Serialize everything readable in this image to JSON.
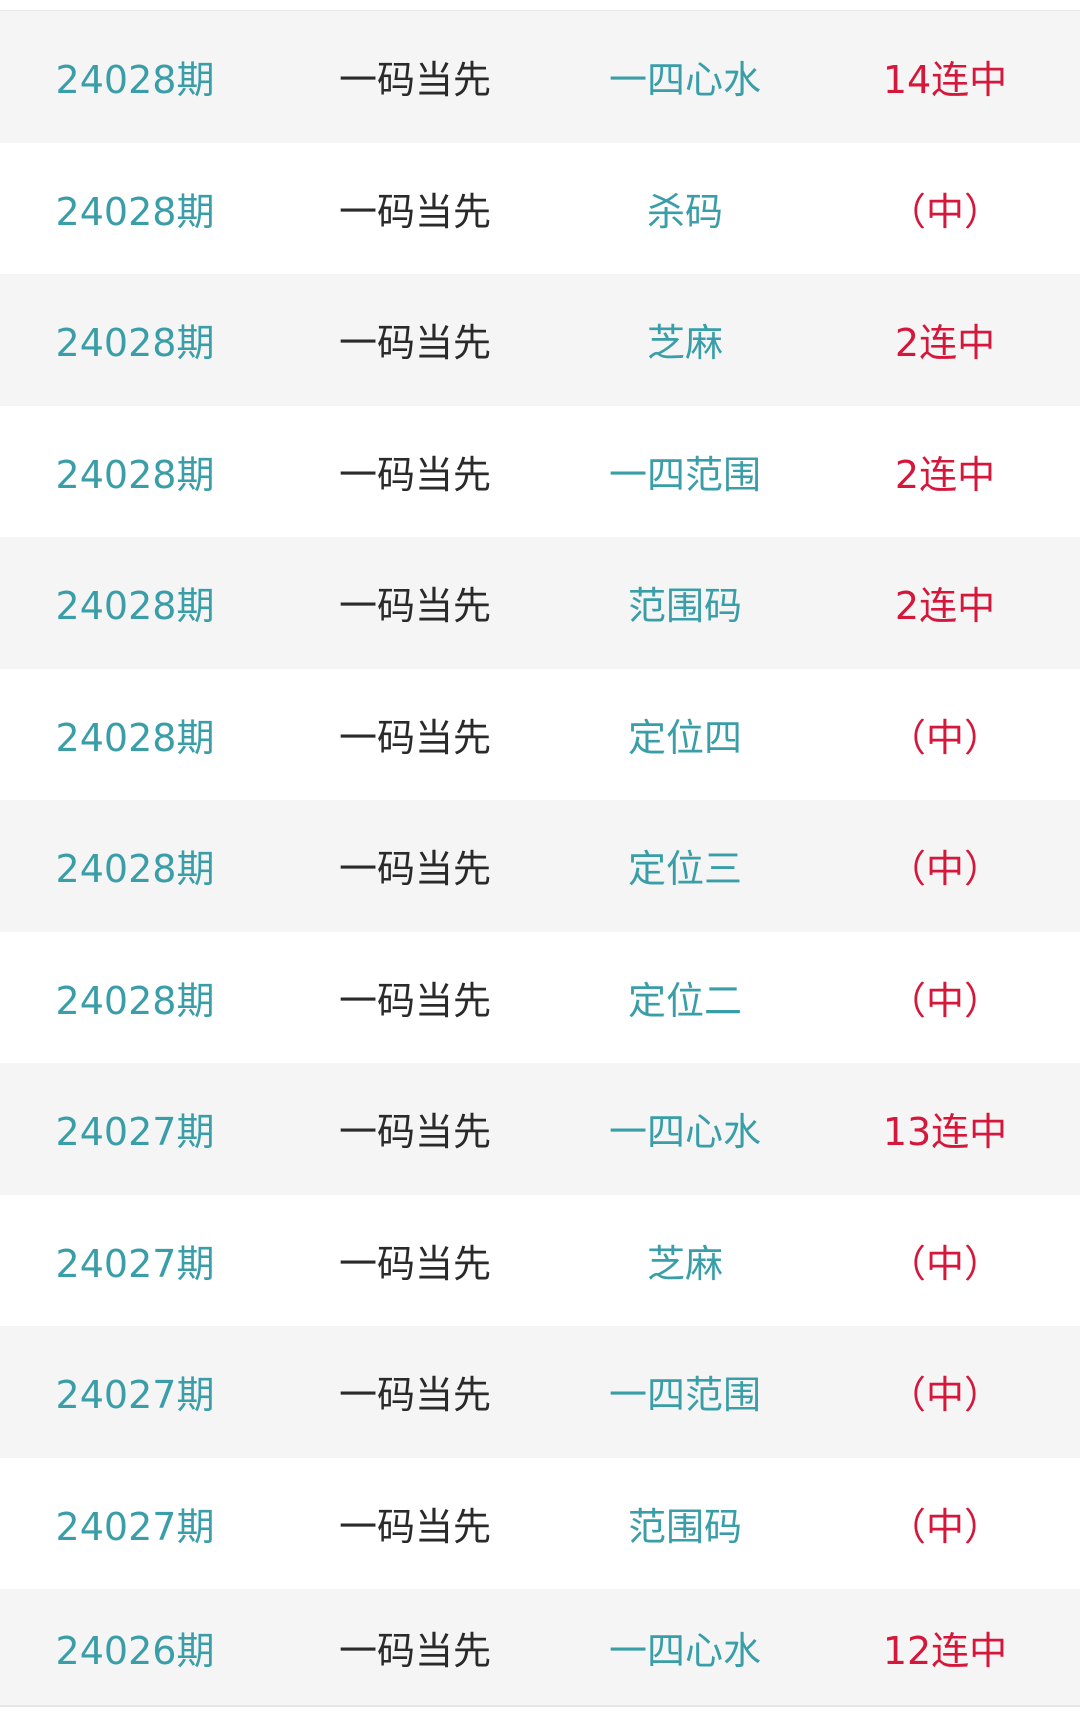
{
  "colors": {
    "issue": "#3a9ea8",
    "category": "#2a2a2a",
    "type": "#3a9ea8",
    "result": "#d4173b",
    "row_alt": "#f5f5f5"
  },
  "rows": [
    {
      "issue": "24028期",
      "category": "一码当先",
      "type": "一四心水",
      "result": "14连中"
    },
    {
      "issue": "24028期",
      "category": "一码当先",
      "type": "杀码",
      "result": "（中）"
    },
    {
      "issue": "24028期",
      "category": "一码当先",
      "type": "芝麻",
      "result": "2连中"
    },
    {
      "issue": "24028期",
      "category": "一码当先",
      "type": "一四范围",
      "result": "2连中"
    },
    {
      "issue": "24028期",
      "category": "一码当先",
      "type": "范围码",
      "result": "2连中"
    },
    {
      "issue": "24028期",
      "category": "一码当先",
      "type": "定位四",
      "result": "（中）"
    },
    {
      "issue": "24028期",
      "category": "一码当先",
      "type": "定位三",
      "result": "（中）"
    },
    {
      "issue": "24028期",
      "category": "一码当先",
      "type": "定位二",
      "result": "（中）"
    },
    {
      "issue": "24027期",
      "category": "一码当先",
      "type": "一四心水",
      "result": "13连中"
    },
    {
      "issue": "24027期",
      "category": "一码当先",
      "type": "芝麻",
      "result": "（中）"
    },
    {
      "issue": "24027期",
      "category": "一码当先",
      "type": "一四范围",
      "result": "（中）"
    },
    {
      "issue": "24027期",
      "category": "一码当先",
      "type": "范围码",
      "result": "（中）"
    },
    {
      "issue": "24026期",
      "category": "一码当先",
      "type": "一四心水",
      "result": "12连中"
    }
  ]
}
